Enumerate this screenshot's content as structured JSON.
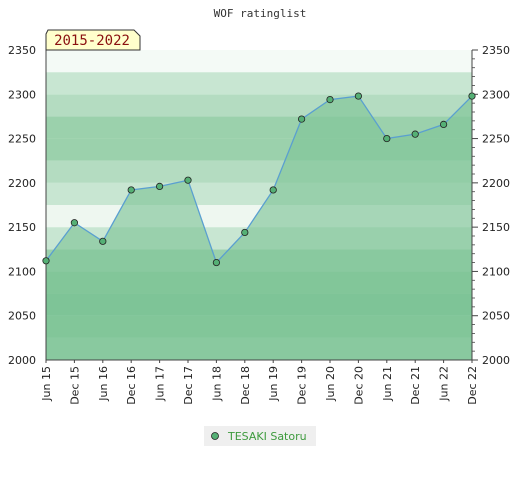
{
  "chart_data": {
    "type": "area",
    "title": "WOF ratinglist",
    "period_label": "2015-2022",
    "ylim": [
      2000,
      2350
    ],
    "y_ticks": [
      2000,
      2050,
      2100,
      2150,
      2200,
      2250,
      2300,
      2350
    ],
    "x_labels": [
      "Jun 15",
      "Dec 15",
      "Jun 16",
      "Dec 16",
      "Jun 17",
      "Dec 17",
      "Jun 18",
      "Dec 18",
      "Jun 19",
      "Dec 19",
      "Jun 20",
      "Dec 20",
      "Jun 21",
      "Dec 21",
      "Jun 22",
      "Dec 22"
    ],
    "series": [
      {
        "name": "TESAKI Satoru",
        "values": [
          2112,
          2155,
          2134,
          2192,
          2196,
          2203,
          2110,
          2144,
          2192,
          2272,
          2294,
          2298,
          2250,
          2255,
          2266,
          2298
        ]
      }
    ],
    "legend_position": "bottom-center",
    "grid": true,
    "colors": {
      "line": "#5a9fd0",
      "fill": "#7fc498",
      "marker": "#55b075",
      "title_box": "#ffffcc"
    }
  }
}
